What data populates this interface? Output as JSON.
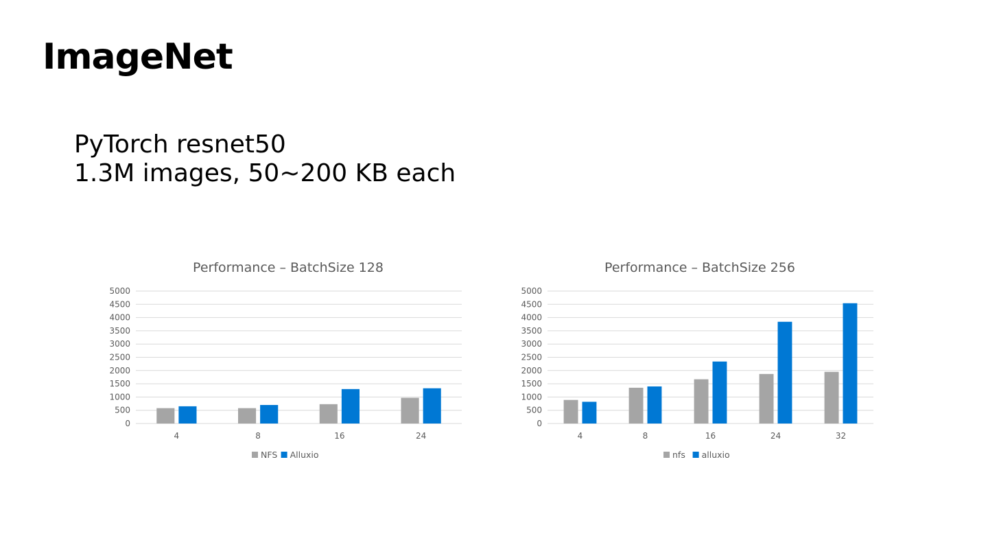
{
  "slide": {
    "title": "ImageNet",
    "subtitle_lines": [
      "PyTorch resnet50",
      "1.3M images, 50~200 KB each"
    ]
  },
  "colors": {
    "series_a": "#a5a5a5",
    "series_b": "#0078d4"
  },
  "chart_data": [
    {
      "type": "bar",
      "title": "Performance – BatchSize 128",
      "categories": [
        "4",
        "8",
        "16",
        "24"
      ],
      "series": [
        {
          "name": "NFS",
          "values": [
            580,
            580,
            730,
            970
          ]
        },
        {
          "name": "Alluxio",
          "values": [
            650,
            700,
            1300,
            1330
          ]
        }
      ],
      "ylim": [
        0,
        5000
      ],
      "yticks": [
        0,
        500,
        1000,
        1500,
        2000,
        2500,
        3000,
        3500,
        4000,
        4500,
        5000
      ],
      "grid": true,
      "legend": "bottom"
    },
    {
      "type": "bar",
      "title": "Performance – BatchSize 256",
      "categories": [
        "4",
        "8",
        "16",
        "24",
        "32"
      ],
      "series": [
        {
          "name": "nfs",
          "values": [
            890,
            1350,
            1670,
            1870,
            1950
          ]
        },
        {
          "name": "alluxio",
          "values": [
            820,
            1400,
            2340,
            3840,
            4540
          ]
        }
      ],
      "ylim": [
        0,
        5000
      ],
      "yticks": [
        0,
        500,
        1000,
        1500,
        2000,
        2500,
        3000,
        3500,
        4000,
        4500,
        5000
      ],
      "grid": true,
      "legend": "bottom"
    }
  ]
}
